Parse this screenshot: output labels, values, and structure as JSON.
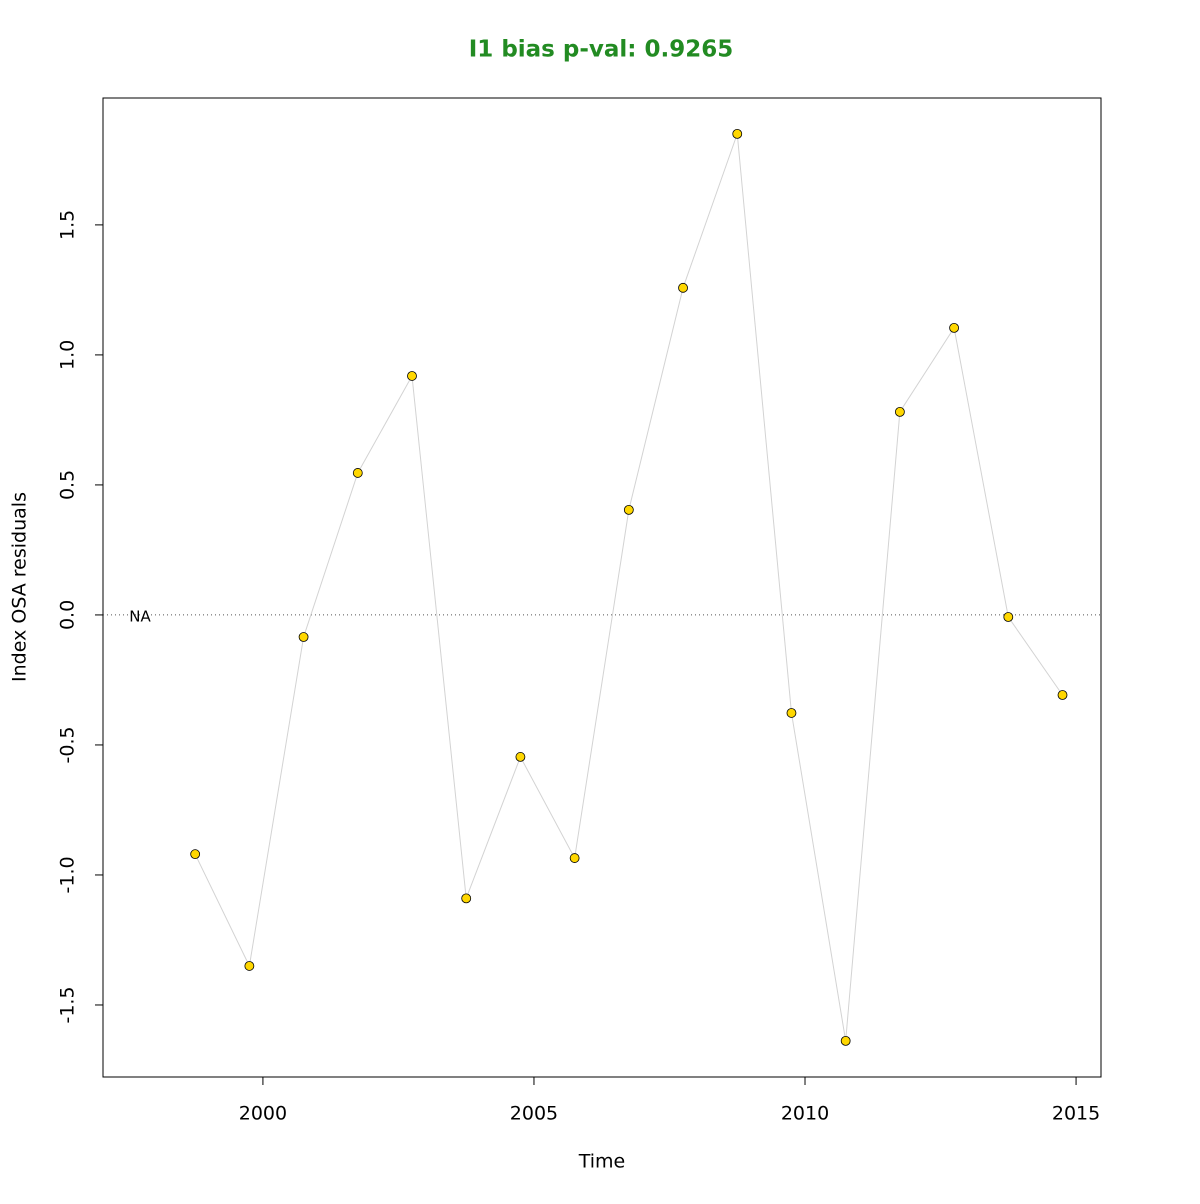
{
  "chart_data": {
    "type": "line",
    "title": "I1 bias p-val: 0.9265",
    "title_color": "#228b22",
    "xlabel": "Time",
    "ylabel": "Index OSA residuals",
    "annotation": "NA",
    "hline": 0,
    "x": [
      1998.75,
      1999.75,
      2000.75,
      2001.75,
      2002.75,
      2003.75,
      2004.75,
      2005.75,
      2006.75,
      2007.75,
      2008.75,
      2009.75,
      2010.75,
      2011.75,
      2012.75,
      2013.75,
      2014.75
    ],
    "series": [
      {
        "name": "I1",
        "color": "#ffd700",
        "line_color": "#d3d3d3",
        "values": [
          -0.92,
          -1.35,
          -0.085,
          0.546,
          0.919,
          -1.09,
          -0.546,
          -0.935,
          0.404,
          1.258,
          1.85,
          -0.377,
          -1.638,
          0.781,
          1.104,
          -0.008,
          -0.308
        ]
      }
    ],
    "xlim": [
      1997.05,
      2015.46
    ],
    "ylim": [
      -1.777,
      1.988
    ],
    "xticks": [
      2000,
      2005,
      2010,
      2015
    ],
    "yticks": [
      -1.5,
      {
        "value": -1,
        "label": "-1.0"
      },
      -0.5,
      {
        "value": 0,
        "label": "0.0"
      },
      0.5,
      {
        "value": 1,
        "label": "1.0"
      },
      1.5
    ]
  }
}
